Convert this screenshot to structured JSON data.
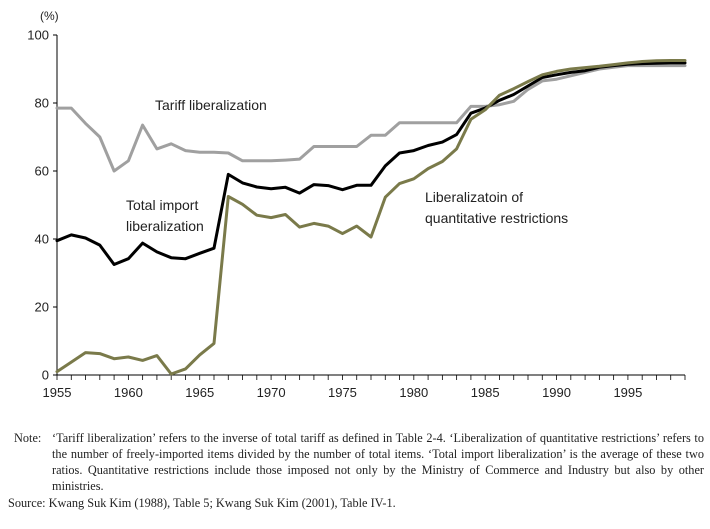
{
  "chart_data": {
    "type": "line",
    "ylabel": "(%)",
    "xlim": [
      1955,
      1999
    ],
    "ylim": [
      0,
      100
    ],
    "x_ticks": [
      1955,
      1960,
      1965,
      1970,
      1975,
      1980,
      1985,
      1990,
      1995
    ],
    "y_ticks": [
      0,
      20,
      40,
      60,
      80,
      100
    ],
    "grid": false,
    "x": [
      1955,
      1956,
      1957,
      1958,
      1959,
      1960,
      1961,
      1962,
      1963,
      1964,
      1965,
      1966,
      1967,
      1968,
      1969,
      1970,
      1971,
      1972,
      1973,
      1974,
      1975,
      1976,
      1977,
      1978,
      1979,
      1980,
      1981,
      1982,
      1983,
      1984,
      1985,
      1986,
      1987,
      1988,
      1989,
      1990,
      1991,
      1992,
      1993,
      1994,
      1995,
      1996,
      1997,
      1998,
      1999
    ],
    "series": [
      {
        "name": "Tariff liberalization",
        "color": "#a0a0a0",
        "values": [
          78.5,
          78.5,
          74,
          70,
          60,
          63,
          73.5,
          66.5,
          68,
          66,
          65.5,
          65.5,
          65.3,
          63,
          63,
          63,
          63.2,
          63.5,
          67.2,
          67.2,
          67.2,
          67.2,
          70.5,
          70.5,
          74.2,
          74.2,
          74.2,
          74.2,
          74.2,
          79,
          79,
          79.5,
          80.5,
          84,
          86.5,
          87,
          88,
          89,
          90,
          90.5,
          91,
          91,
          91,
          91,
          91
        ]
      },
      {
        "name": "Total import liberalization",
        "color": "#000000",
        "values": [
          39.5,
          41.2,
          40.3,
          38.2,
          32.5,
          34.2,
          38.8,
          36.2,
          34.5,
          34.2,
          35.8,
          37.3,
          59,
          56.5,
          55.3,
          54.8,
          55.2,
          53.5,
          56,
          55.7,
          54.5,
          55.8,
          55.8,
          61.5,
          65.3,
          66,
          67.5,
          68.5,
          70.7,
          77,
          78.5,
          80.8,
          82.5,
          85,
          87.5,
          88.3,
          89,
          89.5,
          90.5,
          91,
          91.4,
          91.6,
          91.7,
          91.8,
          91.8
        ]
      },
      {
        "name": "Liberalizatoin of quantitative restrictions",
        "color": "#7a7a4a",
        "values": [
          1,
          3.8,
          6.6,
          6.3,
          4.8,
          5.3,
          4.3,
          5.7,
          0.3,
          1.8,
          5.9,
          9.3,
          52.5,
          50.2,
          47,
          46.3,
          47.2,
          43.5,
          44.6,
          43.8,
          41.6,
          43.8,
          40.6,
          52.3,
          56.3,
          57.7,
          60.7,
          62.8,
          66.5,
          75.2,
          78,
          82.3,
          84.2,
          86.3,
          88.3,
          89.3,
          90,
          90.4,
          90.8,
          91.3,
          91.8,
          92.2,
          92.4,
          92.5,
          92.5
        ]
      }
    ],
    "annotations": {
      "tariff": "Tariff liberalization",
      "total_line1": "Total import",
      "total_line2": "liberalization",
      "quant_line1": "Liberalizatoin of",
      "quant_line2": "quantitative restrictions"
    }
  },
  "notes": {
    "note_key": "Note:",
    "note_text": "‘Tariff liberalization’ refers to the inverse of total tariff as defined in Table 2-4. ‘Liberalization of quantitative restrictions’ refers to the number of freely-imported items divided by the number of total items. ‘Total import liberalization’ is the average of these two ratios. Quantitative restrictions include those imposed not only by the Ministry of Commerce and Industry but also by other ministries.",
    "source": "Source: Kwang Suk Kim (1988), Table 5; Kwang Suk Kim (2001), Table IV-1."
  }
}
